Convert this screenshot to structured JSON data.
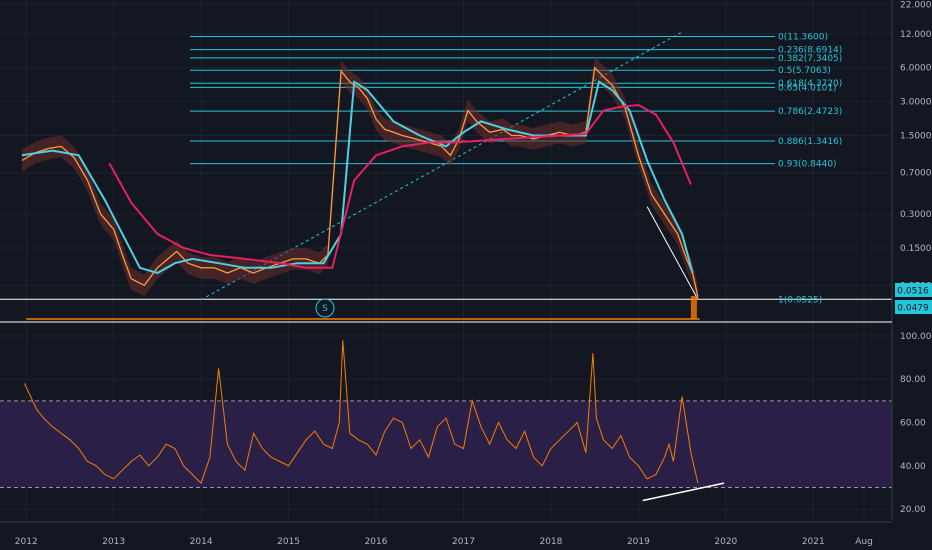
{
  "colors": {
    "background": "#131722",
    "grid": "#1e222d",
    "fib": "#26c6da",
    "price": "#ff9a3c",
    "price_band": "#6d2e2a",
    "ema_fast": "#4dd0e1",
    "ema_slow": "#e91e63",
    "rsi": "#f57c00",
    "rsi_band": "#2a1f47",
    "trend": "#26c6da",
    "divergence": "#ffffff",
    "volume": "#f57c00"
  },
  "price_badges": {
    "upper": "0.0516",
    "lower": "0.0479"
  },
  "event_marker": "S",
  "chart_data": [
    {
      "type": "line",
      "panel": "price",
      "scale": "log",
      "x_ticks": [
        "2012",
        "2013",
        "2014",
        "2015",
        "2016",
        "2017",
        "2018",
        "2019",
        "2020",
        "2021",
        "Aug"
      ],
      "x_tick_years": [
        2012.0,
        2013.0,
        2014.0,
        2015.0,
        2016.0,
        2017.0,
        2018.0,
        2019.0,
        2020.0,
        2021.0,
        2021.58
      ],
      "y_ticks": [
        "22.0000",
        "12.0000",
        "6.0000",
        "3.0000",
        "1.5000",
        "0.7000",
        "0.3000",
        "0.1500",
        "0.0700"
      ],
      "y_tick_values": [
        22.0,
        12.0,
        6.0,
        3.0,
        1.5,
        0.7,
        0.3,
        0.15,
        0.07
      ],
      "ylim": [
        0.033,
        24.0
      ],
      "xlim": [
        2011.7,
        2021.9
      ],
      "fib_levels": [
        {
          "label": "0(11.3600)",
          "value": 11.36
        },
        {
          "label": "0.236(8.6914)",
          "value": 8.6914
        },
        {
          "label": "0.382(7.3405)",
          "value": 7.3405
        },
        {
          "label": "0.5(5.7063)",
          "value": 5.7063
        },
        {
          "label": "0.618(4.3720)",
          "value": 4.372
        },
        {
          "label": "0.65(4.0101)",
          "value": 4.0101
        },
        {
          "label": "0.786(2.4723)",
          "value": 2.4723
        },
        {
          "label": "0.886(1.3416)",
          "value": 1.3416
        },
        {
          "label": "0.93(0.8440)",
          "value": 0.844
        },
        {
          "label": "1(0.0525)",
          "value": 0.0525
        }
      ],
      "series": [
        {
          "kind": "price",
          "x": [
            2011.95,
            2012.1,
            2012.25,
            2012.4,
            2012.55,
            2012.7,
            2012.85,
            2013.0,
            2013.1,
            2013.2,
            2013.35,
            2013.5,
            2013.62,
            2013.72,
            2013.85,
            2014.0,
            2014.15,
            2014.3,
            2014.45,
            2014.6,
            2014.75,
            2014.9,
            2015.05,
            2015.2,
            2015.35,
            2015.45,
            2015.6,
            2015.7,
            2015.8,
            2015.9,
            2016.0,
            2016.1,
            2016.2,
            2016.3,
            2016.45,
            2016.6,
            2016.75,
            2016.85,
            2016.95,
            2017.05,
            2017.15,
            2017.3,
            2017.45,
            2017.55,
            2017.65,
            2017.8,
            2017.95,
            2018.1,
            2018.25,
            2018.4,
            2018.5,
            2018.6,
            2018.7,
            2018.85,
            2019.0,
            2019.15,
            2019.3,
            2019.45,
            2019.55,
            2019.62,
            2019.68
          ],
          "y": [
            0.9,
            1.05,
            1.15,
            1.2,
            0.95,
            0.6,
            0.3,
            0.22,
            0.13,
            0.08,
            0.07,
            0.1,
            0.12,
            0.14,
            0.11,
            0.1,
            0.1,
            0.09,
            0.1,
            0.09,
            0.1,
            0.11,
            0.12,
            0.12,
            0.11,
            0.13,
            5.6,
            4.5,
            4.0,
            3.2,
            2.1,
            1.7,
            1.6,
            1.5,
            1.4,
            1.3,
            1.2,
            1.0,
            1.4,
            2.5,
            2.0,
            1.6,
            1.7,
            1.5,
            1.5,
            1.4,
            1.5,
            1.6,
            1.5,
            1.6,
            6.0,
            5.0,
            4.2,
            2.6,
            1.0,
            0.45,
            0.3,
            0.2,
            0.12,
            0.09,
            0.055
          ]
        },
        {
          "kind": "ema_fast",
          "x": [
            2011.95,
            2012.3,
            2012.6,
            2012.9,
            2013.1,
            2013.3,
            2013.5,
            2013.7,
            2013.9,
            2014.2,
            2014.5,
            2014.8,
            2015.1,
            2015.4,
            2015.6,
            2015.75,
            2015.9,
            2016.2,
            2016.5,
            2016.8,
            2017.0,
            2017.2,
            2017.5,
            2017.8,
            2018.1,
            2018.4,
            2018.55,
            2018.7,
            2018.9,
            2019.1,
            2019.3,
            2019.5,
            2019.62
          ],
          "y": [
            1.0,
            1.1,
            1.0,
            0.4,
            0.2,
            0.1,
            0.09,
            0.11,
            0.12,
            0.11,
            0.1,
            0.1,
            0.11,
            0.11,
            0.2,
            4.5,
            3.8,
            2.0,
            1.5,
            1.2,
            1.6,
            2.0,
            1.7,
            1.5,
            1.5,
            1.5,
            4.5,
            3.8,
            2.5,
            0.9,
            0.4,
            0.2,
            0.09
          ]
        },
        {
          "kind": "ema_slow",
          "x": [
            2012.95,
            2013.2,
            2013.5,
            2013.8,
            2014.1,
            2014.5,
            2014.9,
            2015.2,
            2015.5,
            2015.75,
            2016.0,
            2016.3,
            2016.6,
            2016.9,
            2017.2,
            2017.5,
            2017.8,
            2018.1,
            2018.4,
            2018.6,
            2018.8,
            2019.0,
            2019.2,
            2019.4,
            2019.6
          ],
          "y": [
            0.85,
            0.38,
            0.2,
            0.15,
            0.13,
            0.12,
            0.11,
            0.1,
            0.1,
            0.6,
            1.0,
            1.2,
            1.3,
            1.3,
            1.35,
            1.4,
            1.45,
            1.5,
            1.55,
            2.5,
            2.7,
            2.8,
            2.3,
            1.3,
            0.55
          ]
        }
      ],
      "trendline": {
        "x": [
          2014.0,
          2019.5
        ],
        "y": [
          0.052,
          12.5
        ]
      },
      "divergence_line": {
        "x": [
          2019.1,
          2019.68
        ],
        "y": [
          0.35,
          0.0525
        ]
      }
    },
    {
      "type": "line",
      "panel": "rsi",
      "y_ticks": [
        "100.00",
        "80.00",
        "60.00",
        "40.00",
        "20.00"
      ],
      "y_tick_values": [
        100,
        80,
        60,
        40,
        20
      ],
      "ylim": [
        15,
        105
      ],
      "band": [
        30,
        70
      ],
      "series": [
        {
          "kind": "rsi",
          "x": [
            2011.98,
            2012.05,
            2012.12,
            2012.2,
            2012.3,
            2012.4,
            2012.5,
            2012.6,
            2012.7,
            2012.8,
            2012.9,
            2013.0,
            2013.1,
            2013.2,
            2013.3,
            2013.4,
            2013.5,
            2013.6,
            2013.7,
            2013.8,
            2013.9,
            2014.0,
            2014.1,
            2014.2,
            2014.3,
            2014.4,
            2014.5,
            2014.6,
            2014.7,
            2014.8,
            2014.9,
            2015.0,
            2015.1,
            2015.2,
            2015.3,
            2015.4,
            2015.5,
            2015.58,
            2015.62,
            2015.7,
            2015.8,
            2015.9,
            2016.0,
            2016.1,
            2016.2,
            2016.3,
            2016.4,
            2016.5,
            2016.6,
            2016.7,
            2016.8,
            2016.9,
            2017.0,
            2017.1,
            2017.2,
            2017.3,
            2017.4,
            2017.5,
            2017.6,
            2017.7,
            2017.8,
            2017.9,
            2018.0,
            2018.1,
            2018.2,
            2018.3,
            2018.4,
            2018.48,
            2018.52,
            2018.6,
            2018.7,
            2018.8,
            2018.9,
            2019.0,
            2019.1,
            2019.2,
            2019.3,
            2019.35,
            2019.4,
            2019.5,
            2019.6,
            2019.68
          ],
          "y": [
            78,
            72,
            66,
            62,
            58,
            55,
            52,
            48,
            42,
            40,
            36,
            34,
            38,
            42,
            45,
            40,
            44,
            50,
            48,
            40,
            36,
            32,
            44,
            85,
            50,
            42,
            38,
            55,
            48,
            44,
            42,
            40,
            46,
            52,
            56,
            50,
            48,
            60,
            98,
            55,
            52,
            50,
            45,
            56,
            62,
            60,
            48,
            52,
            44,
            58,
            62,
            50,
            48,
            70,
            58,
            50,
            60,
            52,
            48,
            56,
            44,
            40,
            48,
            52,
            56,
            60,
            46,
            92,
            62,
            52,
            48,
            54,
            44,
            40,
            34,
            36,
            44,
            50,
            42,
            72,
            46,
            32
          ]
        }
      ],
      "divergence_line": {
        "x": [
          2019.05,
          2019.98
        ],
        "y": [
          24,
          32
        ]
      }
    }
  ]
}
